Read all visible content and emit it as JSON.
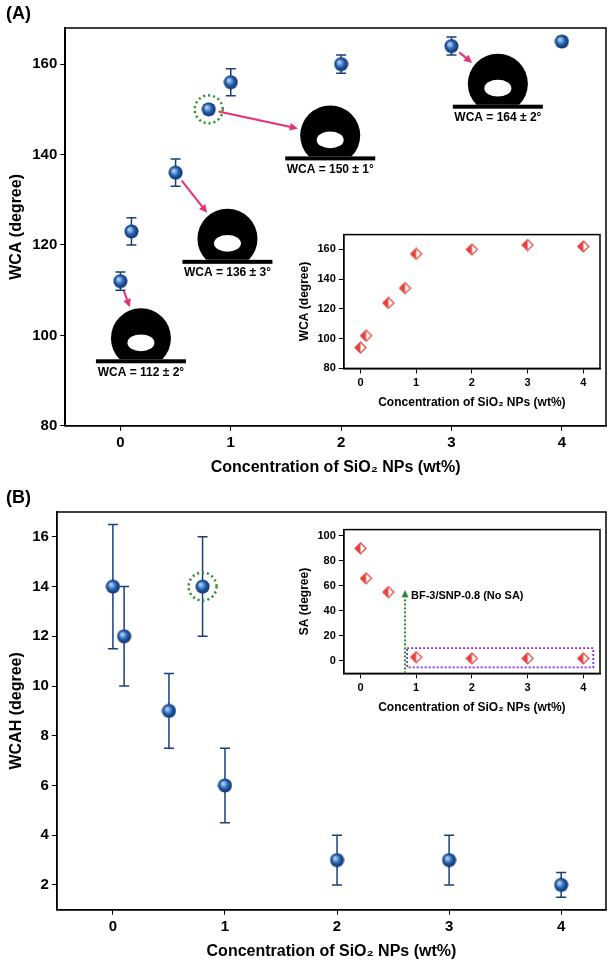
{
  "chart_data": [
    {
      "type": "scatter",
      "panel": "(A)",
      "x_label": "Concentration of SiO₂ NPs (wt%)",
      "y_label": "WCA (degree)",
      "x": [
        0,
        0.1,
        0.5,
        0.8,
        1,
        2,
        3,
        4
      ],
      "values": [
        112,
        123,
        136,
        150,
        156,
        160,
        164,
        165
      ],
      "errors": [
        2,
        3,
        3,
        1,
        3,
        2,
        2,
        1
      ],
      "color": "#1f5fb0",
      "marker": "circle",
      "xlim": [
        -0.5,
        4.4
      ],
      "xticks": [
        0,
        1,
        2,
        3,
        4
      ],
      "ylim": [
        80,
        168
      ],
      "yticks": [
        80,
        100,
        120,
        140,
        160
      ],
      "grid": false,
      "highlight": 0.8,
      "annotations": [
        {
          "text": "WCA = 112 ± 2°",
          "x": 0
        },
        {
          "text": "WCA = 136 ± 3°",
          "x": 0.5
        },
        {
          "text": "WCA = 150 ± 1°",
          "x": 0.8
        },
        {
          "text": "WCA = 164 ± 2°",
          "x": 3
        }
      ],
      "inset": {
        "type": "scatter",
        "x_label": "Concentration of SiO₂ NPs (wt%)",
        "y_label": "WCA (degree)",
        "x": [
          0,
          0.1,
          0.5,
          0.8,
          1,
          2,
          3,
          4
        ],
        "values": [
          94,
          102,
          124,
          134,
          157,
          160,
          163,
          162
        ],
        "color": "#e8413c",
        "marker": "half-diamond",
        "xlim": [
          -0.3,
          4.3
        ],
        "xticks": [
          0,
          1,
          2,
          3,
          4
        ],
        "ylim": [
          80,
          170
        ],
        "yticks": [
          80,
          100,
          120,
          140,
          160
        ],
        "grid": false
      }
    },
    {
      "type": "scatter",
      "panel": "(B)",
      "x_label": "Concentration of SiO₂ NPs (wt%)",
      "y_label": "WCAH (degree)",
      "x": [
        0,
        0.1,
        0.5,
        0.8,
        1,
        2,
        3,
        4
      ],
      "values": [
        14,
        12,
        9,
        14,
        6,
        3,
        3,
        2
      ],
      "errors": [
        2.5,
        2,
        1.5,
        2,
        1.5,
        1,
        1,
        0.5
      ],
      "color": "#1f5fb0",
      "marker": "circle",
      "xlim": [
        -0.5,
        4.4
      ],
      "xticks": [
        0,
        1,
        2,
        3,
        4
      ],
      "ylim": [
        1,
        17
      ],
      "yticks": [
        2,
        4,
        6,
        8,
        10,
        12,
        14,
        16
      ],
      "grid": false,
      "highlight": 0.8,
      "inset": {
        "type": "scatter",
        "x_label": "Concentration of SiO₂ NPs (wt%)",
        "y_label": "SA (degree)",
        "x": [
          0,
          0.1,
          0.5,
          1,
          2,
          3,
          4
        ],
        "values": [
          90,
          66,
          55,
          3,
          2,
          2,
          2
        ],
        "color": "#e8413c",
        "marker": "half-diamond",
        "xlim": [
          -0.3,
          4.3
        ],
        "xticks": [
          0,
          1,
          2,
          3,
          4
        ],
        "ylim": [
          -10,
          105
        ],
        "yticks": [
          0,
          20,
          40,
          60,
          80,
          100
        ],
        "grid": false,
        "highlight_range": [
          1,
          4
        ],
        "annotations": [
          {
            "text": "BF-3/SNP-0.8 (No SA)",
            "x": 0.8
          }
        ]
      }
    }
  ]
}
